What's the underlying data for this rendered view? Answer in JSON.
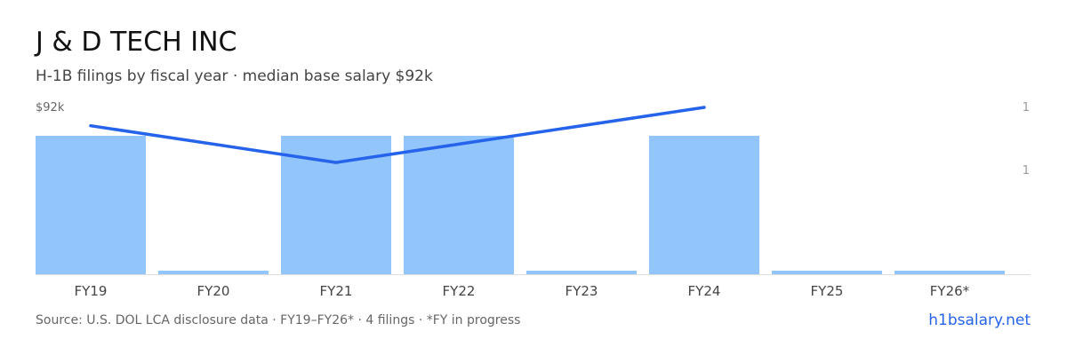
{
  "header": {
    "title": "J & D TECH INC",
    "subtitle": "H-1B filings by fiscal year · median base salary $92k"
  },
  "footer": {
    "source": "Source: U.S. DOL LCA disclosure data · FY19–FY26* · 4 filings · *FY in progress",
    "brand": "h1bsalary.net"
  },
  "colors": {
    "bar": "#93c5fd",
    "line": "#2563eb",
    "axis": "#dddddd",
    "tick": "#999999",
    "category": "#444444"
  },
  "chart_data": {
    "type": "bar",
    "categories": [
      "FY19",
      "FY20",
      "FY21",
      "FY22",
      "FY23",
      "FY24",
      "FY25",
      "FY26*"
    ],
    "series": [
      {
        "type": "bar",
        "values": [
          1,
          0,
          1,
          1,
          0,
          1,
          0,
          0
        ]
      },
      {
        "type": "line",
        "values": [
          91,
          null,
          89,
          90,
          null,
          92,
          null,
          null
        ]
      }
    ],
    "y_right_ticks": [
      "1",
      "1"
    ],
    "y_left_ticks": [
      "$92k"
    ],
    "grid": false,
    "legend": "none"
  }
}
